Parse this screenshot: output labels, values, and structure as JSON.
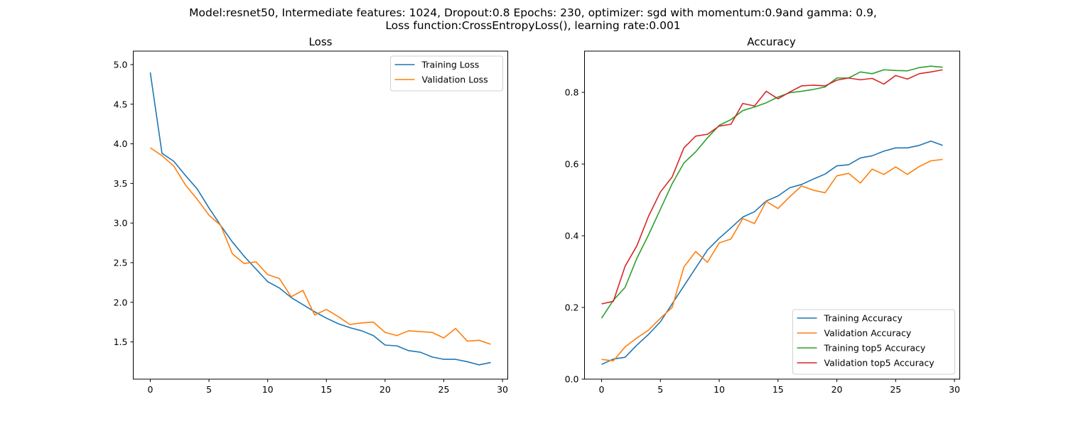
{
  "figure": {
    "suptitle_line1": "Model:resnet50, Intermediate features: 1024, Dropout:0.8 Epochs: 230, optimizer: sgd with momentum:0.9and gamma: 0.9,",
    "suptitle_line2": "Loss function:CrossEntropyLoss(), learning rate:0.001"
  },
  "chart_data": [
    {
      "type": "line",
      "title": "Loss",
      "xlabel": "",
      "ylabel": "",
      "x": [
        0,
        1,
        2,
        3,
        4,
        5,
        6,
        7,
        8,
        9,
        10,
        11,
        12,
        13,
        14,
        15,
        16,
        17,
        18,
        19,
        20,
        21,
        22,
        23,
        24,
        25,
        26,
        27,
        28,
        29
      ],
      "xlim": [
        -1.45,
        30.45
      ],
      "ylim": [
        1.03,
        5.17
      ],
      "xticks": [
        0,
        5,
        10,
        15,
        20,
        25,
        30
      ],
      "yticks": [
        1.5,
        2.0,
        2.5,
        3.0,
        3.5,
        4.0,
        4.5,
        5.0
      ],
      "ytick_labels": [
        "1.5",
        "2.0",
        "2.5",
        "3.0",
        "3.5",
        "4.0",
        "4.5",
        "5.0"
      ],
      "grid": false,
      "legend": "upper right",
      "series": [
        {
          "name": "Training Loss",
          "color": "#1f77b4",
          "values": [
            4.9,
            3.88,
            3.78,
            3.6,
            3.43,
            3.19,
            2.97,
            2.76,
            2.58,
            2.42,
            2.26,
            2.18,
            2.06,
            1.97,
            1.88,
            1.8,
            1.73,
            1.68,
            1.64,
            1.58,
            1.46,
            1.45,
            1.39,
            1.37,
            1.31,
            1.28,
            1.28,
            1.25,
            1.21,
            1.24
          ]
        },
        {
          "name": "Validation Loss",
          "color": "#ff7f0e",
          "values": [
            3.95,
            3.85,
            3.72,
            3.48,
            3.3,
            3.1,
            2.97,
            2.61,
            2.49,
            2.51,
            2.35,
            2.3,
            2.07,
            2.15,
            1.84,
            1.91,
            1.82,
            1.72,
            1.74,
            1.75,
            1.62,
            1.58,
            1.64,
            1.63,
            1.62,
            1.55,
            1.67,
            1.51,
            1.52,
            1.47
          ]
        }
      ]
    },
    {
      "type": "line",
      "title": "Accuracy",
      "xlabel": "",
      "ylabel": "",
      "x": [
        0,
        1,
        2,
        3,
        4,
        5,
        6,
        7,
        8,
        9,
        10,
        11,
        12,
        13,
        14,
        15,
        16,
        17,
        18,
        19,
        20,
        21,
        22,
        23,
        24,
        25,
        26,
        27,
        28,
        29
      ],
      "xlim": [
        -1.45,
        30.45
      ],
      "ylim": [
        0.0,
        0.915
      ],
      "xticks": [
        0,
        5,
        10,
        15,
        20,
        25,
        30
      ],
      "yticks": [
        0.0,
        0.2,
        0.4,
        0.6,
        0.8
      ],
      "ytick_labels": [
        "0.0",
        "0.2",
        "0.4",
        "0.6",
        "0.8"
      ],
      "grid": false,
      "legend": "lower right",
      "series": [
        {
          "name": "Training Accuracy",
          "color": "#1f77b4",
          "values": [
            0.041,
            0.056,
            0.061,
            0.095,
            0.125,
            0.16,
            0.21,
            0.26,
            0.31,
            0.36,
            0.393,
            0.422,
            0.452,
            0.467,
            0.497,
            0.511,
            0.534,
            0.543,
            0.558,
            0.572,
            0.595,
            0.598,
            0.617,
            0.623,
            0.636,
            0.645,
            0.645,
            0.652,
            0.664,
            0.652
          ]
        },
        {
          "name": "Validation Accuracy",
          "color": "#ff7f0e",
          "values": [
            0.055,
            0.051,
            0.09,
            0.115,
            0.137,
            0.17,
            0.2,
            0.313,
            0.356,
            0.326,
            0.38,
            0.391,
            0.448,
            0.434,
            0.496,
            0.476,
            0.509,
            0.539,
            0.527,
            0.52,
            0.567,
            0.574,
            0.547,
            0.586,
            0.571,
            0.592,
            0.571,
            0.593,
            0.609,
            0.613
          ]
        },
        {
          "name": "Training top5 Accuracy",
          "color": "#2ca02c",
          "values": [
            0.17,
            0.22,
            0.256,
            0.337,
            0.403,
            0.474,
            0.545,
            0.603,
            0.634,
            0.673,
            0.708,
            0.724,
            0.749,
            0.759,
            0.771,
            0.787,
            0.799,
            0.803,
            0.808,
            0.815,
            0.84,
            0.84,
            0.857,
            0.852,
            0.863,
            0.861,
            0.86,
            0.869,
            0.873,
            0.87
          ]
        },
        {
          "name": "Validation top5 Accuracy",
          "color": "#d62728",
          "values": [
            0.21,
            0.217,
            0.315,
            0.372,
            0.455,
            0.522,
            0.564,
            0.645,
            0.678,
            0.683,
            0.706,
            0.711,
            0.769,
            0.762,
            0.803,
            0.782,
            0.801,
            0.818,
            0.82,
            0.818,
            0.834,
            0.84,
            0.835,
            0.839,
            0.823,
            0.847,
            0.837,
            0.852,
            0.857,
            0.863
          ]
        }
      ]
    }
  ]
}
